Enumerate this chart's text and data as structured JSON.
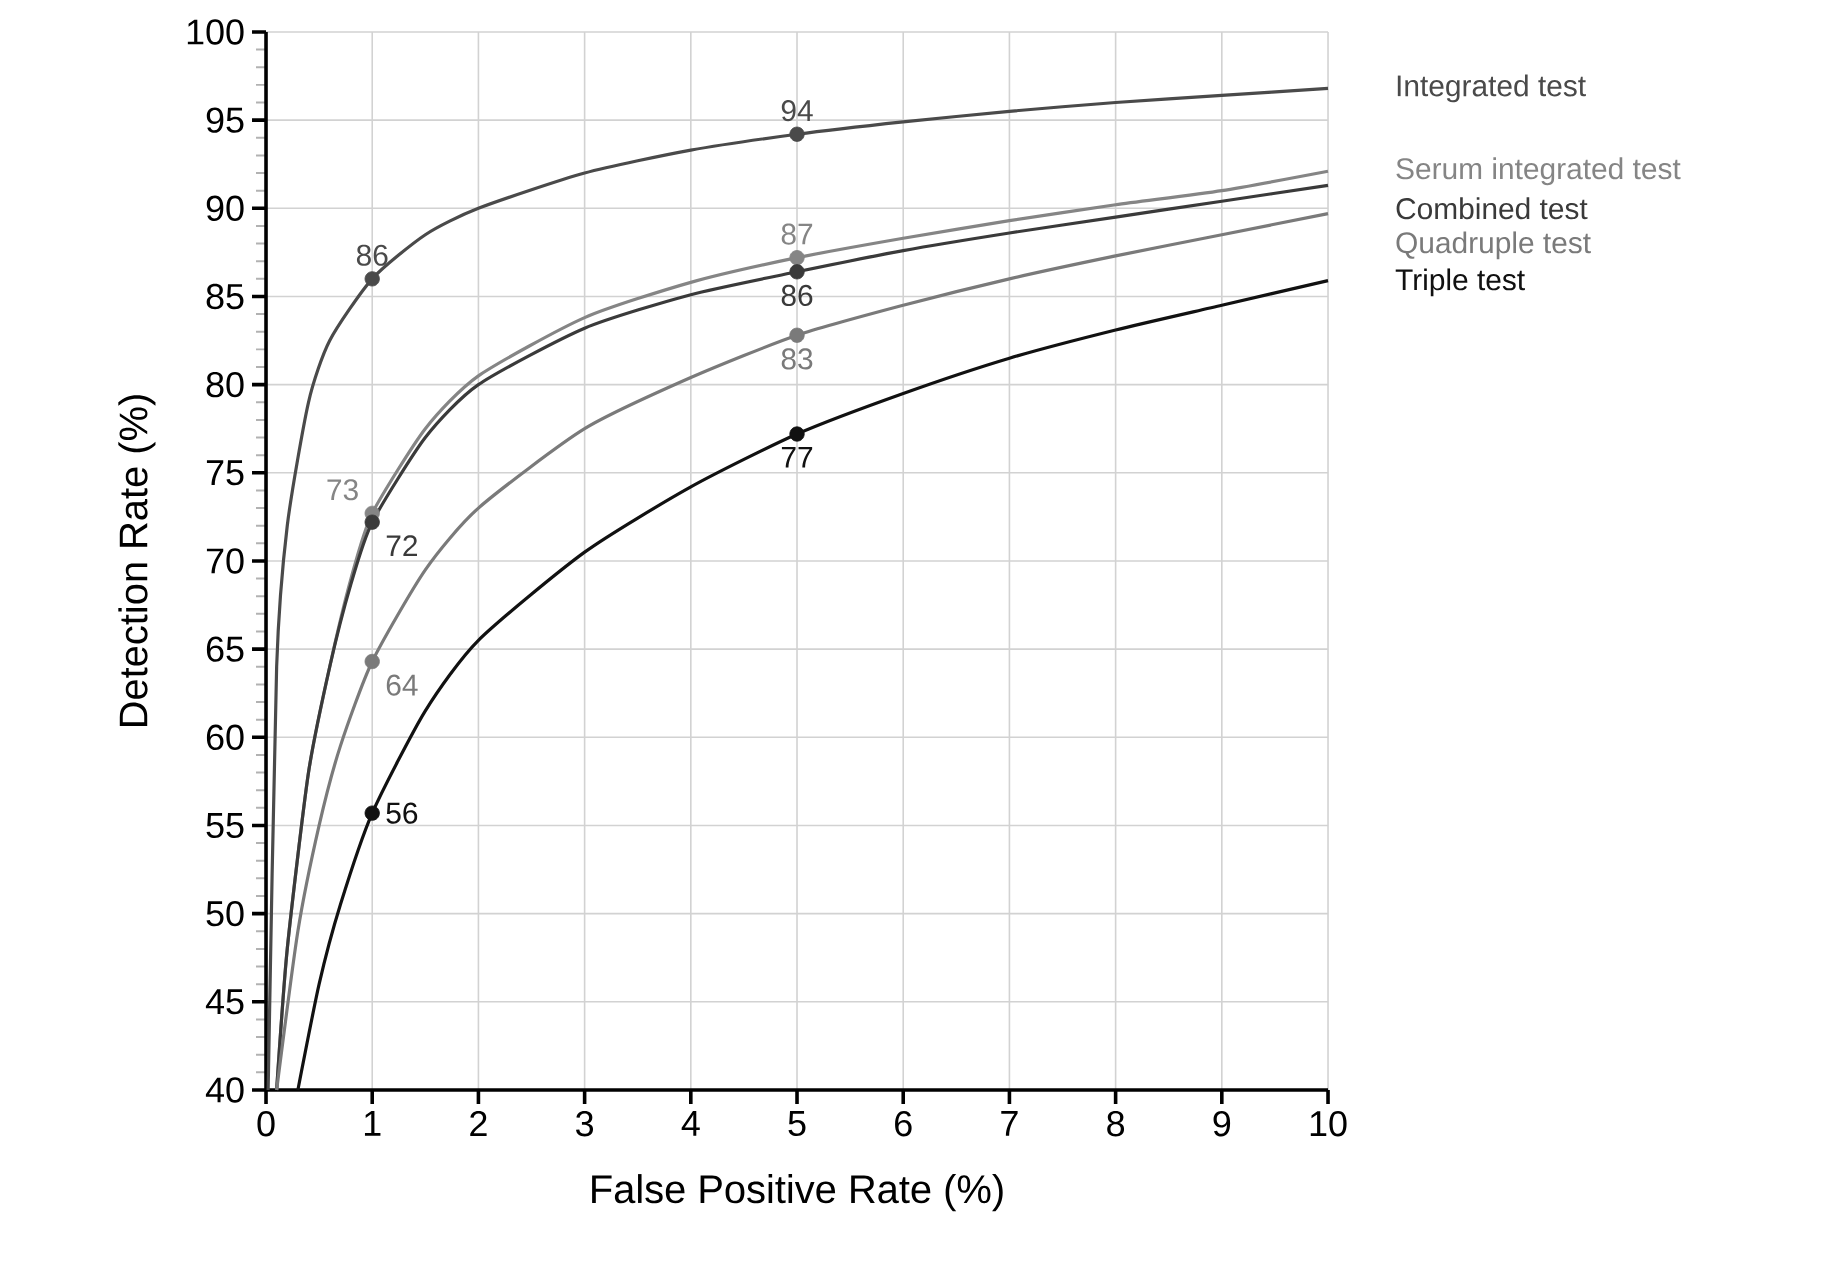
{
  "chart_data": {
    "type": "line",
    "xlabel": "False Positive Rate (%)",
    "ylabel": "Detection Rate (%)",
    "xlim": [
      0,
      10
    ],
    "ylim": [
      40,
      100
    ],
    "xticks": [
      0,
      1,
      2,
      3,
      4,
      5,
      6,
      7,
      8,
      9,
      10
    ],
    "yticks": [
      40,
      45,
      50,
      55,
      60,
      65,
      70,
      75,
      80,
      85,
      90,
      95,
      100
    ],
    "grid": true,
    "marker": "none",
    "line_style": "solid",
    "series": [
      {
        "name": "Integrated test",
        "color": "#4a4a4a",
        "x": [
          0.02,
          0.1,
          0.2,
          0.4,
          0.6,
          1,
          1.5,
          2,
          3,
          4,
          5,
          6,
          7,
          8,
          9,
          10
        ],
        "values": [
          40,
          64,
          72,
          79,
          82.5,
          86,
          88.5,
          90,
          92,
          93.3,
          94.2,
          94.9,
          95.5,
          96,
          96.4,
          96.8
        ]
      },
      {
        "name": "Serum integrated test",
        "color": "#858585",
        "x": [
          0.1,
          0.2,
          0.4,
          0.6,
          0.8,
          1,
          1.5,
          2,
          3,
          4,
          5,
          6,
          7,
          8,
          9,
          10
        ],
        "values": [
          40,
          48,
          58,
          64,
          69,
          72.7,
          77.5,
          80.5,
          83.8,
          85.8,
          87.2,
          88.3,
          89.3,
          90.2,
          91.0,
          92.1
        ]
      },
      {
        "name": "Combined test",
        "color": "#3a3a3a",
        "x": [
          0.1,
          0.2,
          0.4,
          0.6,
          0.8,
          1,
          1.5,
          2,
          3,
          4,
          5,
          6,
          7,
          8,
          9,
          10
        ],
        "values": [
          40,
          48,
          58,
          64,
          68.7,
          72.2,
          77,
          80,
          83.2,
          85.1,
          86.4,
          87.6,
          88.6,
          89.5,
          90.4,
          91.3
        ]
      },
      {
        "name": "Quadruple test",
        "color": "#7a7a7a",
        "x": [
          0.1,
          0.3,
          0.5,
          0.7,
          1,
          1.5,
          2,
          3,
          4,
          5,
          6,
          7,
          8,
          9,
          10
        ],
        "values": [
          40,
          49,
          55,
          59.5,
          64.3,
          69.5,
          73,
          77.5,
          80.4,
          82.8,
          84.5,
          86,
          87.3,
          88.5,
          89.7
        ]
      },
      {
        "name": "Triple test",
        "color": "#111111",
        "x": [
          0.3,
          0.5,
          0.7,
          1,
          1.5,
          2,
          3,
          4,
          5,
          6,
          7,
          8,
          9,
          10
        ],
        "values": [
          40,
          46,
          50.5,
          55.7,
          61.5,
          65.5,
          70.5,
          74.2,
          77.2,
          79.5,
          81.5,
          83.1,
          84.5,
          85.9
        ]
      },
      {
        "type": "scatter",
        "color": "#4a4a4a",
        "marker": "circle",
        "x": [
          1,
          5
        ],
        "values": [
          86,
          94.2
        ],
        "value_labels": [
          "86",
          "94"
        ]
      },
      {
        "type": "scatter",
        "color": "#858585",
        "marker": "circle",
        "x": [
          1,
          5
        ],
        "values": [
          72.7,
          87.2
        ],
        "value_labels": [
          "73",
          "87"
        ]
      },
      {
        "type": "scatter",
        "color": "#3a3a3a",
        "marker": "circle",
        "x": [
          1,
          5
        ],
        "values": [
          72.2,
          86.4
        ],
        "value_labels": [
          "72",
          "86"
        ]
      },
      {
        "type": "scatter",
        "color": "#7a7a7a",
        "marker": "circle",
        "x": [
          1,
          5
        ],
        "values": [
          64.3,
          82.8
        ],
        "value_labels": [
          "64",
          "83"
        ]
      },
      {
        "type": "scatter",
        "color": "#111111",
        "marker": "circle",
        "x": [
          1,
          5
        ],
        "values": [
          55.7,
          77.2
        ],
        "value_labels": [
          "56",
          "77"
        ]
      }
    ]
  }
}
